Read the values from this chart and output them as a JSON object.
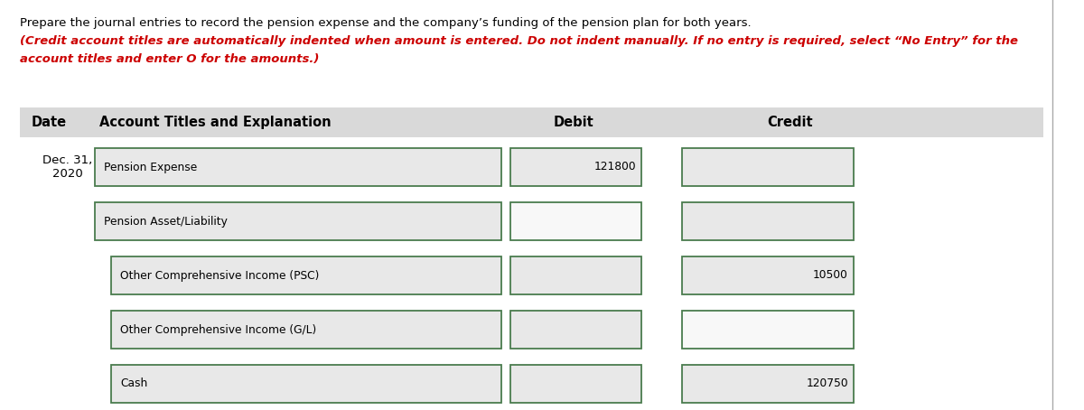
{
  "title_black": "Prepare the journal entries to record the pension expense and the company’s funding of the pension plan for both years. ",
  "title_red_line1": "(Credit account titles are automatically indented when amount is entered. Do not indent manually. If no entry is required, select “No Entry” for the",
  "title_red_line2": "account titles and enter O for the amounts.)",
  "header_bg": "#d9d9d9",
  "header_date": "Date",
  "header_account": "Account Titles and Explanation",
  "header_debit": "Debit",
  "header_credit": "Credit",
  "date_label": "Dec. 31,\n2020",
  "rows": [
    {
      "account": "Pension Expense",
      "debit": "121800",
      "credit": "",
      "indent": false,
      "debit_white": false,
      "credit_white": false
    },
    {
      "account": "Pension Asset/Liability",
      "debit": "",
      "credit": "",
      "indent": false,
      "debit_white": true,
      "credit_white": false
    },
    {
      "account": "Other Comprehensive Income (PSC)",
      "debit": "",
      "credit": "10500",
      "indent": true,
      "debit_white": false,
      "credit_white": false
    },
    {
      "account": "Other Comprehensive Income (G/L)",
      "debit": "",
      "credit": "",
      "indent": true,
      "debit_white": false,
      "credit_white": true
    },
    {
      "account": "Cash",
      "debit": "",
      "credit": "120750",
      "indent": true,
      "debit_white": false,
      "credit_white": false
    }
  ],
  "box_bg": "#e8e8e8",
  "box_border": "#4a7c4e",
  "box_bg_white": "#f8f8f8",
  "title_red_color": "#cc0000",
  "fig_bg": "#ffffff",
  "right_border_color": "#aaaaaa"
}
